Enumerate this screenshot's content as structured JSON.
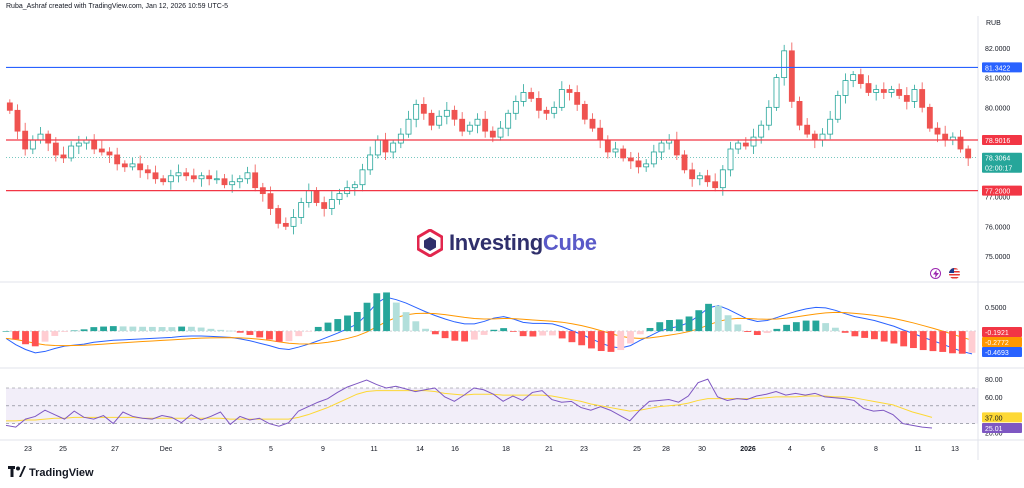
{
  "header": {
    "credit": "Ruba_Ashraf created with TradingView.com, Jan 12, 2026 10:59 UTC-5",
    "currency": "RUB"
  },
  "footer": {
    "logo": "TradingView"
  },
  "watermark": {
    "part1": "Investing",
    "part2": "Cube"
  },
  "icons": [
    "lightning-icon",
    "us-flag-icon"
  ],
  "colors": {
    "up": "#26a69a",
    "down": "#ef5350",
    "blue_line": "#2962ff",
    "red_line": "#f23645",
    "macd": "#2962ff",
    "signal": "#ff9800",
    "rsi": "#7e57c2",
    "rsi_ma": "#fdd835"
  },
  "chart_data": [
    {
      "type": "candlestick",
      "price_axis_ticks": [
        "82.0000",
        "81.0000",
        "80.0000",
        "79.0000",
        "78.0000",
        "77.0000",
        "76.0000",
        "75.0000"
      ],
      "ylim": [
        74.6,
        82.6
      ],
      "date_ticks": [
        "23",
        "25",
        "27",
        "Dec",
        "3",
        "5",
        "9",
        "11",
        "14",
        "16",
        "18",
        "21",
        "23",
        "25",
        "28",
        "30",
        "2026",
        "4",
        "6",
        "8",
        "11",
        "13"
      ],
      "horizontal_lines": [
        {
          "value": 81.3422,
          "label": "81.3422",
          "color": "blue"
        },
        {
          "value": 78.9016,
          "label": "78.9016",
          "color": "red"
        },
        {
          "value": 77.2,
          "label": "77.2000",
          "color": "red"
        }
      ],
      "last_price": {
        "value": 78.3064,
        "label": "78.3064",
        "countdown": "02:00:17"
      },
      "closes": [
        79.9,
        79.2,
        78.6,
        78.9,
        79.1,
        78.8,
        78.4,
        78.3,
        78.7,
        78.8,
        78.9,
        78.6,
        78.5,
        78.4,
        78.1,
        78.0,
        78.1,
        77.9,
        77.8,
        77.6,
        77.5,
        77.7,
        77.8,
        77.7,
        77.6,
        77.7,
        77.6,
        77.6,
        77.4,
        77.5,
        77.6,
        77.8,
        77.3,
        77.1,
        76.6,
        76.1,
        76.0,
        76.3,
        76.8,
        77.2,
        76.8,
        76.6,
        76.9,
        77.1,
        77.3,
        77.4,
        77.9,
        78.4,
        78.9,
        78.5,
        78.8,
        79.1,
        79.6,
        80.1,
        79.8,
        79.4,
        79.7,
        79.9,
        79.6,
        79.2,
        79.4,
        79.6,
        79.2,
        79.0,
        79.3,
        79.8,
        80.2,
        80.5,
        80.3,
        79.9,
        79.8,
        80.0,
        80.6,
        80.5,
        80.1,
        79.6,
        79.3,
        78.9,
        78.5,
        78.6,
        78.3,
        78.2,
        78.0,
        78.1,
        78.5,
        78.8,
        78.9,
        78.4,
        77.9,
        77.6,
        77.7,
        77.5,
        77.3,
        77.9,
        78.6,
        78.8,
        78.7,
        79.0,
        79.4,
        80.0,
        81.0,
        81.9,
        80.2,
        79.4,
        79.1,
        78.9,
        79.1,
        79.6,
        80.4,
        80.9,
        81.1,
        80.8,
        80.5,
        80.6,
        80.5,
        80.6,
        80.4,
        80.2,
        80.6,
        80.0,
        79.3,
        79.1,
        78.9,
        79.0,
        78.6,
        78.3
      ]
    },
    {
      "type": "macd",
      "axis_ticks": [
        "0.5000",
        "0.0000"
      ],
      "ylim": [
        -0.68,
        0.85
      ],
      "labels": [
        {
          "value": -0.1921,
          "label": "-0.1921",
          "color": "red"
        },
        {
          "value": -0.2772,
          "label": "-0.2772",
          "color": "orange"
        },
        {
          "value": -0.4693,
          "label": "-0.4693",
          "color": "blue"
        }
      ],
      "macd": [
        -0.15,
        -0.28,
        -0.38,
        -0.45,
        -0.42,
        -0.36,
        -0.31,
        -0.29,
        -0.27,
        -0.23,
        -0.21,
        -0.19,
        -0.18,
        -0.17,
        -0.16,
        -0.15,
        -0.14,
        -0.13,
        -0.11,
        -0.1,
        -0.1,
        -0.11,
        -0.12,
        -0.13,
        -0.16,
        -0.2,
        -0.25,
        -0.3,
        -0.36,
        -0.38,
        -0.33,
        -0.27,
        -0.2,
        -0.12,
        -0.04,
        0.05,
        0.15,
        0.35,
        0.58,
        0.7,
        0.65,
        0.58,
        0.49,
        0.4,
        0.32,
        0.25,
        0.19,
        0.15,
        0.15,
        0.2,
        0.27,
        0.3,
        0.25,
        0.18,
        0.16,
        0.16,
        0.15,
        0.09,
        0.01,
        -0.07,
        -0.16,
        -0.25,
        -0.32,
        -0.35,
        -0.3,
        -0.19,
        -0.1,
        0.0,
        0.06,
        0.1,
        0.18,
        0.32,
        0.48,
        0.53,
        0.45,
        0.35,
        0.25,
        0.2,
        0.22,
        0.28,
        0.35,
        0.41,
        0.46,
        0.49,
        0.48,
        0.43,
        0.36,
        0.3,
        0.26,
        0.22,
        0.16,
        0.1,
        0.02,
        -0.05,
        -0.13,
        -0.2,
        -0.27,
        -0.35,
        -0.42,
        -0.47
      ]
    },
    {
      "type": "rsi",
      "axis_ticks": [
        "80.00",
        "60.00",
        "40.00",
        "20.00"
      ],
      "ylim": [
        16,
        88
      ],
      "band": [
        30,
        70
      ],
      "middle": 50,
      "labels": [
        {
          "value": 37.0,
          "label": "37.00",
          "color": "yellow"
        },
        {
          "value": 25.01,
          "label": "25.01",
          "color": "purple"
        }
      ],
      "rsi": [
        28,
        26,
        35,
        38,
        45,
        40,
        35,
        44,
        37,
        35,
        39,
        30,
        43,
        38,
        36,
        35,
        39,
        37,
        31,
        40,
        34,
        38,
        43,
        29,
        38,
        34,
        36,
        30,
        27,
        31,
        44,
        49,
        54,
        58,
        65,
        71,
        75,
        79,
        74,
        70,
        72,
        69,
        66,
        68,
        70,
        60,
        55,
        62,
        70,
        68,
        63,
        55,
        61,
        56,
        65,
        67,
        57,
        54,
        55,
        48,
        45,
        49,
        45,
        39,
        33,
        45,
        55,
        56,
        57,
        54,
        61,
        76,
        80,
        60,
        56,
        58,
        57,
        61,
        63,
        66,
        62,
        64,
        62,
        64,
        60,
        59,
        58,
        56,
        47,
        44,
        45,
        40,
        30,
        28,
        26,
        25
      ],
      "rsi_ma": [
        33,
        33,
        34,
        34,
        35,
        36,
        36,
        37,
        37,
        37,
        37,
        37,
        37,
        37,
        36,
        36,
        36,
        36,
        36,
        36,
        36,
        36,
        36,
        35,
        35,
        35,
        35,
        35,
        35,
        35,
        37,
        40,
        44,
        48,
        53,
        58,
        63,
        66,
        67,
        67,
        67,
        67,
        67,
        67,
        66,
        64,
        63,
        62,
        63,
        63,
        63,
        62,
        62,
        62,
        62,
        62,
        61,
        59,
        57,
        55,
        52,
        50,
        48,
        46,
        44,
        45,
        47,
        49,
        50,
        51,
        53,
        56,
        58,
        58,
        58,
        58,
        58,
        58,
        59,
        60,
        60,
        60,
        61,
        61,
        61,
        60,
        60,
        59,
        57,
        55,
        53,
        51,
        47,
        43,
        40,
        37
      ]
    }
  ]
}
